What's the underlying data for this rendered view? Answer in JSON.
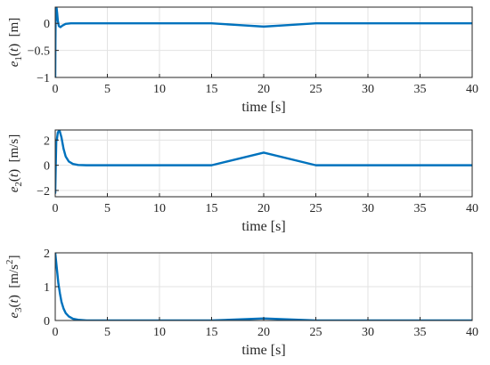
{
  "colors": {
    "series": "#0072BD",
    "axis": "#262626",
    "grid": "#e3e3e3"
  },
  "chart_data": [
    {
      "type": "line",
      "xlabel": "time [s]",
      "ylabel": "e_1(t) [m]",
      "ylabel_parts": {
        "var": "e",
        "sub": "1",
        "arg": "(t)",
        "unit": "[m]",
        "sup": ""
      },
      "xlim": [
        0,
        40
      ],
      "ylim": [
        -1,
        0.3
      ],
      "xticks": [
        0,
        5,
        10,
        15,
        20,
        25,
        30,
        35,
        40
      ],
      "yticks": [
        -1,
        -0.5,
        0
      ],
      "ytick_labels": [
        "−1",
        "−0.5",
        "0"
      ],
      "grid": true,
      "series": [
        {
          "x": [
            0,
            0.02,
            0.05,
            0.08,
            0.12,
            0.18,
            0.25,
            0.35,
            0.5,
            0.7,
            1,
            1.5,
            2,
            15,
            17.5,
            20,
            22.5,
            25,
            30,
            40
          ],
          "y": [
            -1,
            -0.3,
            0.3,
            0.3,
            0.3,
            0.2,
            0.05,
            -0.05,
            -0.07,
            -0.04,
            -0.01,
            0,
            0,
            0,
            -0.03,
            -0.06,
            -0.03,
            0,
            0,
            0
          ]
        }
      ]
    },
    {
      "type": "line",
      "xlabel": "time [s]",
      "ylabel": "e_2(t) [m/s]",
      "ylabel_parts": {
        "var": "e",
        "sub": "2",
        "arg": "(t)",
        "unit": "[m/s]",
        "sup": ""
      },
      "xlim": [
        0,
        40
      ],
      "ylim": [
        -2.5,
        2.8
      ],
      "xticks": [
        0,
        5,
        10,
        15,
        20,
        25,
        30,
        35,
        40
      ],
      "yticks": [
        -2,
        0,
        2
      ],
      "ytick_labels": [
        "−2",
        "0",
        "2"
      ],
      "grid": true,
      "series": [
        {
          "x": [
            0,
            0.05,
            0.1,
            0.15,
            0.25,
            0.4,
            0.6,
            0.8,
            1,
            1.3,
            1.7,
            2.2,
            3,
            15,
            20,
            25,
            30,
            40
          ],
          "y": [
            -2.2,
            0,
            1.9,
            2,
            2.6,
            2.8,
            2.2,
            1.3,
            0.7,
            0.3,
            0.1,
            0.02,
            0,
            0,
            1,
            0,
            0,
            0
          ]
        }
      ]
    },
    {
      "type": "line",
      "xlabel": "time [s]",
      "ylabel": "e_3(t) [m/s^2]",
      "ylabel_parts": {
        "var": "e",
        "sub": "3",
        "arg": "(t)",
        "unit": "[m/s",
        "sup": "2",
        "close": "]"
      },
      "xlim": [
        0,
        40
      ],
      "ylim": [
        0,
        2
      ],
      "xticks": [
        0,
        5,
        10,
        15,
        20,
        25,
        30,
        35,
        40
      ],
      "yticks": [
        0,
        1,
        2
      ],
      "ytick_labels": [
        "0",
        "1",
        "2"
      ],
      "grid": true,
      "series": [
        {
          "x": [
            0,
            0.1,
            0.2,
            0.3,
            0.45,
            0.6,
            0.8,
            1,
            1.3,
            1.7,
            2.2,
            3,
            15,
            17.5,
            20,
            22.5,
            25,
            30,
            40
          ],
          "y": [
            2,
            1.7,
            1.4,
            1.1,
            0.8,
            0.55,
            0.35,
            0.22,
            0.12,
            0.05,
            0.02,
            0,
            0,
            0.03,
            0.06,
            0.03,
            0,
            0,
            0
          ]
        }
      ]
    }
  ]
}
